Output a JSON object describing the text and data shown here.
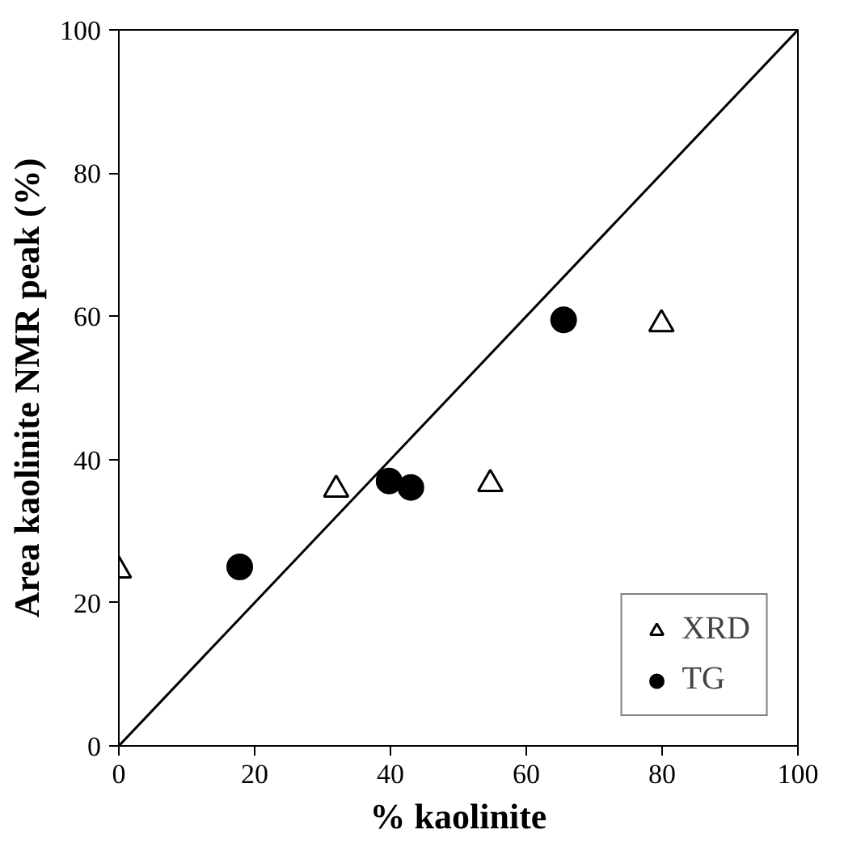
{
  "chart_data": {
    "type": "scatter",
    "xlabel": "% kaolinite",
    "ylabel": "Area kaolinite NMR peak (%)",
    "xlim": [
      0,
      100
    ],
    "ylim": [
      0,
      100
    ],
    "xticks": [
      0,
      20,
      40,
      60,
      80,
      100
    ],
    "yticks": [
      0,
      20,
      40,
      60,
      80,
      100
    ],
    "grid": false,
    "legend": "bottom right",
    "series": [
      {
        "name": "XRD",
        "color": "#ffffff",
        "marker": "triangle",
        "x": [
          0,
          32,
          54.7,
          79.9
        ],
        "values": [
          24.5,
          35.8,
          36.6,
          58.9
        ]
      },
      {
        "name": "TG",
        "color": "#000000",
        "marker": "circle",
        "x": [
          17.8,
          39.8,
          43,
          65.5
        ],
        "values": [
          25.0,
          37.0,
          36.1,
          59.5
        ]
      },
      {
        "type": "line",
        "color": "#000000",
        "x": [
          0,
          100
        ],
        "values": [
          0,
          100
        ]
      }
    ]
  }
}
